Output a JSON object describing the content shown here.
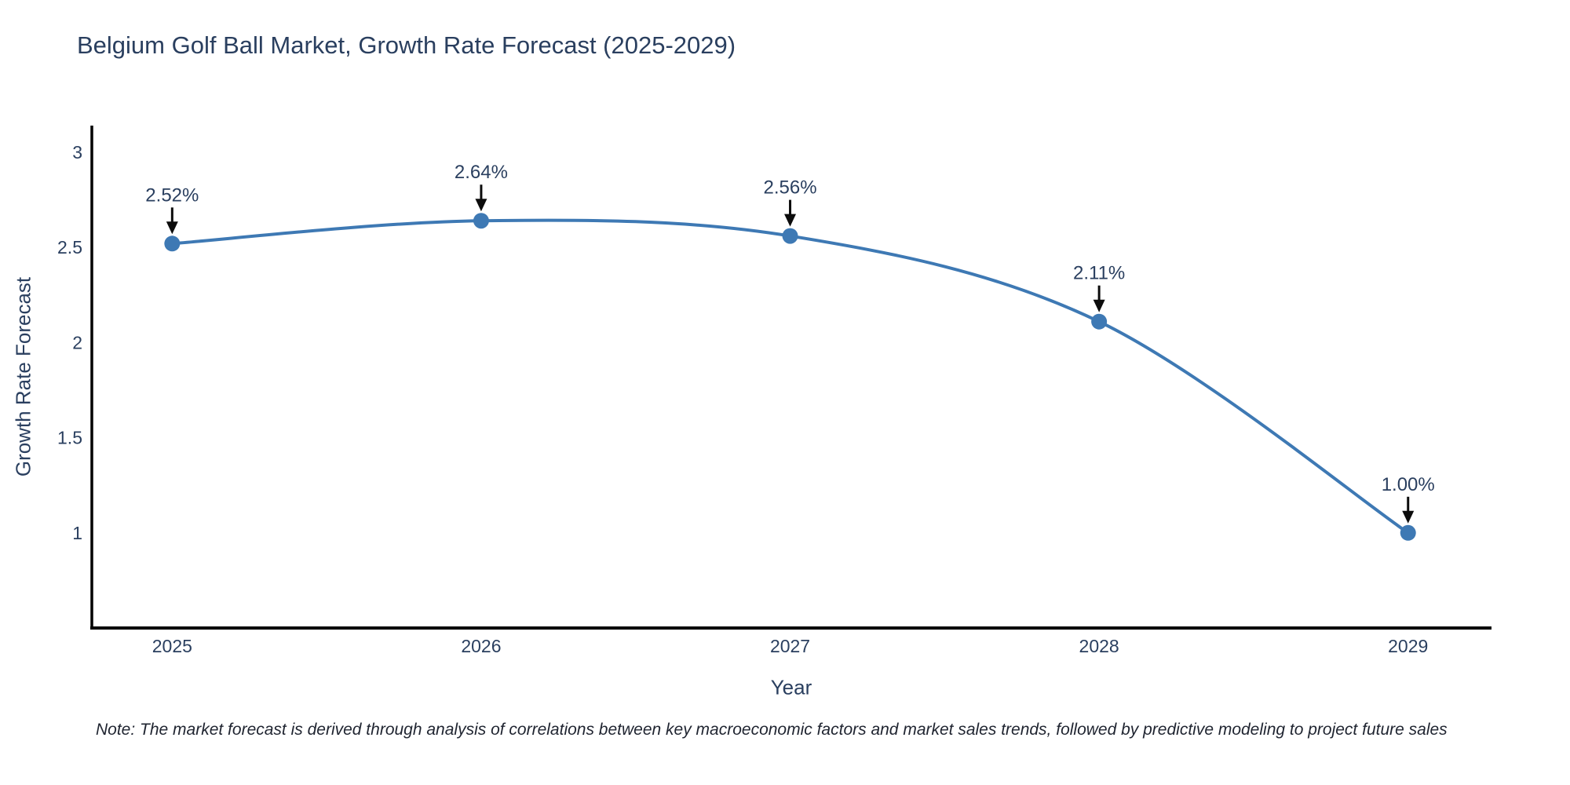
{
  "title": "Belgium Golf Ball Market, Growth Rate Forecast (2025-2029)",
  "note": "Note: The market forecast is derived through analysis of correlations between key macroeconomic factors and market sales trends, followed by predictive modeling to project future sales",
  "chart_data": {
    "type": "line",
    "line_shape": "spline",
    "title": "Belgium Golf Ball Market, Growth Rate Forecast (2025-2029)",
    "xlabel": "Year",
    "ylabel": "Growth Rate Forecast",
    "x": [
      2025,
      2026,
      2027,
      2028,
      2029
    ],
    "x_tick_labels": [
      "2025",
      "2026",
      "2027",
      "2028",
      "2029"
    ],
    "series": [
      {
        "name": "Growth Rate Forecast",
        "values": [
          2.52,
          2.64,
          2.56,
          2.11,
          1.0
        ]
      }
    ],
    "point_labels": [
      "2.52%",
      "2.64%",
      "2.56%",
      "2.11%",
      "1.00%"
    ],
    "y_ticks": [
      3,
      2.5,
      2,
      1.5,
      1
    ],
    "y_tick_labels": [
      "3",
      "2.5",
      "2",
      "1.5",
      "1"
    ],
    "xlim": [
      2024.74,
      2029.27
    ],
    "ylim": [
      0.5,
      3.14
    ],
    "grid": false,
    "legend": "none",
    "colors": {
      "line": "#3e79b4",
      "marker": "#3e79b4",
      "axis": "#000000",
      "tick_text": "#2a3f5f",
      "annotation_text": "#2a3f5f",
      "annotation_arrow": "#0c0c0c",
      "background": "#ffffff"
    }
  }
}
